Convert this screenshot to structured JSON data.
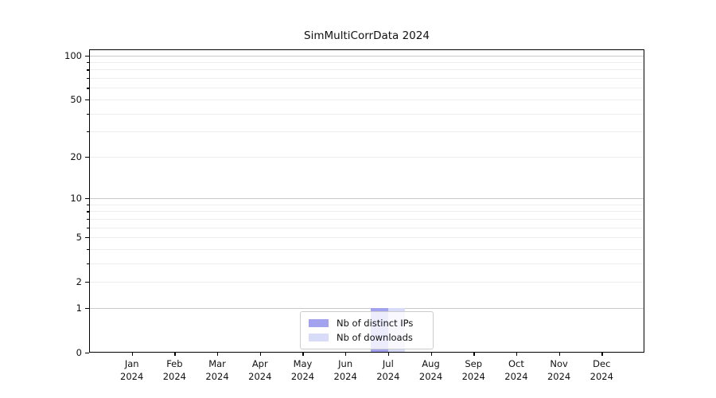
{
  "chart_data": {
    "type": "bar",
    "title": "SimMultiCorrData 2024",
    "categories": [
      "Jan 2024",
      "Feb 2024",
      "Mar 2024",
      "Apr 2024",
      "May 2024",
      "Jun 2024",
      "Jul 2024",
      "Aug 2024",
      "Sep 2024",
      "Oct 2024",
      "Nov 2024",
      "Dec 2024"
    ],
    "series": [
      {
        "name": "Nb of distinct IPs",
        "color": "#a2a2ee",
        "values": [
          0,
          0,
          0,
          0,
          0,
          0,
          1,
          0,
          0,
          0,
          0,
          0
        ]
      },
      {
        "name": "Nb of downloads",
        "color": "#d9dcf8",
        "values": [
          0,
          0,
          0,
          0,
          0,
          0,
          1,
          0,
          0,
          0,
          0,
          0
        ]
      }
    ],
    "xlabel": "",
    "ylabel": "",
    "yscale": "log1p",
    "ylim": [
      0,
      110
    ],
    "y_ticks": [
      0,
      1,
      2,
      5,
      10,
      20,
      50,
      100
    ],
    "y_tick_labels": [
      "0",
      "1",
      "2",
      "5",
      "10",
      "20",
      "50",
      "100"
    ],
    "y_major_gridlines": [
      1,
      10,
      100
    ],
    "y_minor_gridlines": [
      2,
      3,
      4,
      5,
      6,
      7,
      8,
      9,
      20,
      30,
      40,
      50,
      60,
      70,
      80,
      90
    ],
    "grid": true,
    "legend_position": "lower center",
    "colors": {
      "major_grid": "#c9c9c9",
      "minor_grid": "#ededed",
      "spine": "#000000",
      "text": "#111111",
      "background": "#ffffff"
    }
  }
}
